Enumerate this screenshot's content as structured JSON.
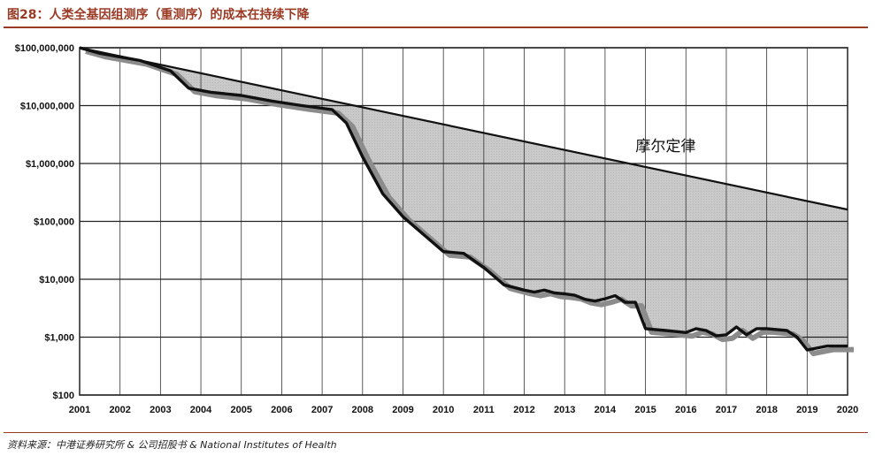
{
  "title": "图28：人类全基因组测序（重测序）的成本在持续下降",
  "source": "资料来源：中港证券研究所 & 公司招股书 & National Institutes of Health",
  "chart_data": {
    "type": "area",
    "title": "",
    "xlabel": "",
    "ylabel": "",
    "yscale": "log",
    "ylim": [
      100,
      100000000
    ],
    "xlim": [
      2001,
      2020
    ],
    "x_ticks": [
      "2001",
      "2002",
      "2003",
      "2004",
      "2005",
      "2006",
      "2007",
      "2008",
      "2009",
      "2010",
      "2011",
      "2012",
      "2013",
      "2014",
      "2015",
      "2016",
      "2017",
      "2018",
      "2019",
      "2020"
    ],
    "y_ticks": [
      {
        "value": 100,
        "label": "$100"
      },
      {
        "value": 1000,
        "label": "$1,000"
      },
      {
        "value": 10000,
        "label": "$10,000"
      },
      {
        "value": 100000,
        "label": "$100,000"
      },
      {
        "value": 1000000,
        "label": "$1,000,000"
      },
      {
        "value": 10000000,
        "label": "$10,000,000"
      },
      {
        "value": 100000000,
        "label": "$100,000,000"
      }
    ],
    "grid": true,
    "annotations": [
      {
        "text": "摩尔定律",
        "x": 2015.5,
        "y": 1000000
      }
    ],
    "series": [
      {
        "name": "摩尔定律",
        "style": "line",
        "color": "#111111",
        "x": [
          2001,
          2020
        ],
        "y": [
          100000000,
          160000
        ]
      },
      {
        "name": "",
        "style": "line",
        "color": "#111111",
        "x": [
          2001,
          2001.5,
          2002.5,
          2003.25,
          2003.7,
          2004.25,
          2005,
          2005.75,
          2006.5,
          2007,
          2007.25,
          2007.6,
          2008,
          2008.5,
          2009,
          2009.5,
          2010,
          2010.5,
          2011,
          2011.5,
          2012,
          2012.25,
          2012.5,
          2012.75,
          2013,
          2013.25,
          2013.5,
          2013.75,
          2014,
          2014.25,
          2014.5,
          2014.75,
          2015,
          2015.5,
          2016,
          2016.25,
          2016.5,
          2016.75,
          2017,
          2017.25,
          2017.5,
          2017.75,
          2018,
          2018.5,
          2018.75,
          2019,
          2019.5,
          2020
        ],
        "y": [
          100000000,
          80000000,
          60000000,
          40000000,
          20000000,
          17000000,
          15000000,
          12000000,
          10000000,
          9000000,
          8500000,
          5000000,
          1300000,
          300000,
          120000,
          60000,
          30000,
          28000,
          16000,
          8000,
          6500,
          6000,
          6500,
          5800,
          5600,
          5300,
          4500,
          4200,
          4600,
          5200,
          4000,
          4000,
          1400,
          1300,
          1200,
          1400,
          1300,
          1050,
          1100,
          1500,
          1100,
          1400,
          1400,
          1300,
          1000,
          600,
          700,
          700
        ]
      }
    ]
  }
}
